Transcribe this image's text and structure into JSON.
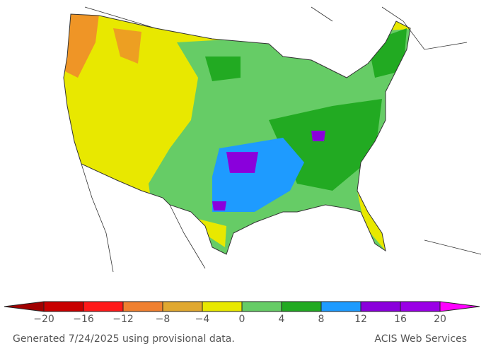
{
  "legend": {
    "ticks": [
      {
        "value": -20,
        "label": "−20"
      },
      {
        "value": -16,
        "label": "−16"
      },
      {
        "value": -12,
        "label": "−12"
      },
      {
        "value": -8,
        "label": "−8"
      },
      {
        "value": -4,
        "label": "−4"
      },
      0,
      4,
      8,
      12,
      16,
      20
    ],
    "colors": [
      "#a00000",
      "#c80000",
      "#ff1a1a",
      "#f08030",
      "#e0a830",
      "#e8e800",
      "#66cc66",
      "#22aa22",
      "#1e9bff",
      "#8a00dc",
      "#9a00e6",
      "#ff00ff"
    ]
  },
  "footer": {
    "left": "Generated 7/24/2025 using provisional data.",
    "right": "ACIS Web Services"
  }
}
